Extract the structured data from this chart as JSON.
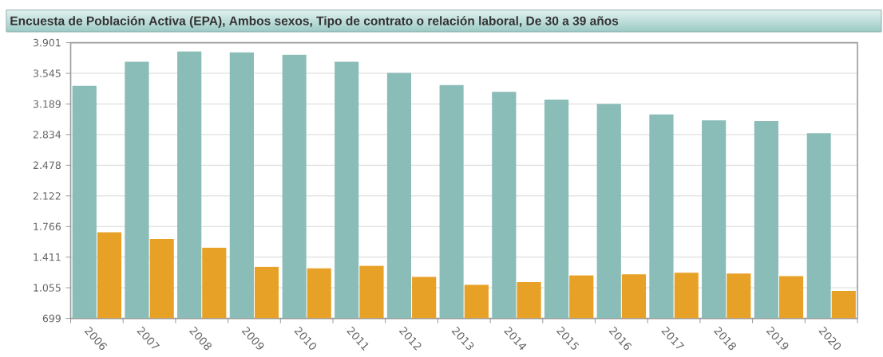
{
  "chart_data": {
    "type": "bar",
    "title": "Encuesta de Población Activa (EPA), Ambos sexos, Tipo de contrato o relación laboral, De 30 a 39 años",
    "categories": [
      "2006",
      "2007",
      "2008",
      "2009",
      "2010",
      "2011",
      "2012",
      "2013",
      "2014",
      "2015",
      "2016",
      "2017",
      "2018",
      "2019",
      "2020"
    ],
    "series": [
      {
        "color": "#8abcb8",
        "values": [
          3400,
          3680,
          3800,
          3790,
          3760,
          3680,
          3550,
          3410,
          3330,
          3240,
          3190,
          3070,
          3000,
          2990,
          2850
        ]
      },
      {
        "color": "#e8a127",
        "values": [
          1700,
          1620,
          1520,
          1300,
          1280,
          1310,
          1180,
          1090,
          1120,
          1200,
          1210,
          1230,
          1220,
          1190,
          1020
        ]
      }
    ],
    "ylim": [
      699,
      3901
    ],
    "yticks": [
      699,
      {
        "value": 1055,
        "label": "1.055"
      },
      {
        "value": 1411,
        "label": "1.411"
      },
      {
        "value": 1766,
        "label": "1.766"
      },
      {
        "value": 2122,
        "label": "2.122"
      },
      {
        "value": 2478,
        "label": "2.478"
      },
      {
        "value": 2834,
        "label": "2.834"
      },
      {
        "value": 3189,
        "label": "3.189"
      },
      {
        "value": 3545,
        "label": "3.545"
      },
      {
        "value": 3901,
        "label": "3.901"
      }
    ],
    "grid": "y"
  }
}
